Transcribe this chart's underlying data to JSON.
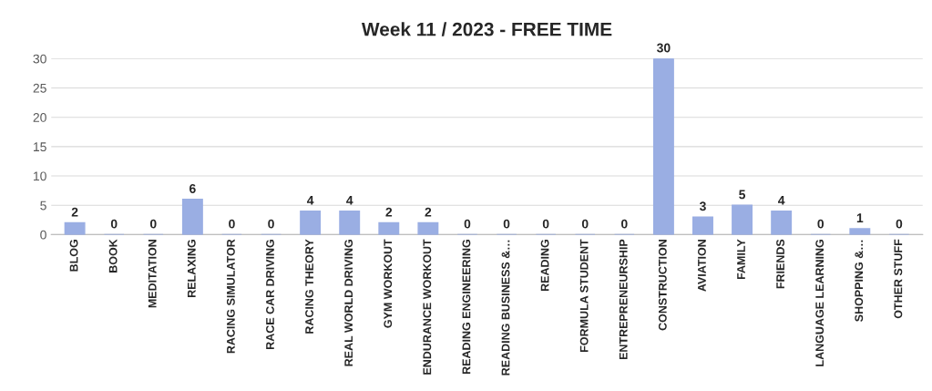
{
  "chart_data": {
    "type": "bar",
    "title": "Week 11 / 2023 - FREE TIME",
    "categories": [
      "BLOG",
      "BOOK",
      "MEDITATION",
      "RELAXING",
      "RACING SIMULATOR",
      "RACE CAR DRIVING",
      "RACING THEORY",
      "REAL WORLD DRIVING",
      "GYM WORKOUT",
      "ENDURANCE WORKOUT",
      "READING ENGINEERING",
      "READING BUSINESS &…",
      "READING",
      "FORMULA STUDENT",
      "ENTREPRENEURSHIP",
      "CONSTRUCTION",
      "AVIATION",
      "FAMILY",
      "FRIENDS",
      "LANGUAGE LEARNING",
      "SHOPPING &…",
      "OTHER STUFF"
    ],
    "values": [
      2,
      0,
      0,
      6,
      0,
      0,
      4,
      4,
      2,
      2,
      0,
      0,
      0,
      0,
      0,
      30,
      3,
      5,
      4,
      0,
      1,
      0
    ],
    "color": "#9aaee3",
    "ylim": [
      0,
      30
    ],
    "yticks": [
      0,
      5,
      10,
      15,
      20,
      25,
      30
    ],
    "grid": "y",
    "data_labels": true
  }
}
